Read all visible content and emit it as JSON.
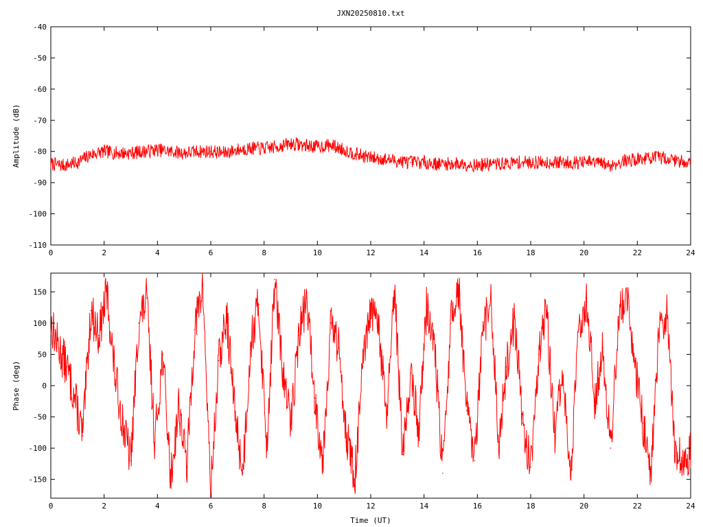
{
  "chart_data": [
    {
      "type": "line",
      "title": "JXN20250810.txt",
      "xlabel": "",
      "ylabel": "Amplitude (dB)",
      "xlim": [
        0,
        24
      ],
      "ylim": [
        -110,
        -40
      ],
      "xticks": [
        "0",
        "2",
        "4",
        "6",
        "8",
        "10",
        "12",
        "14",
        "16",
        "18",
        "20",
        "22",
        "24"
      ],
      "yticks": [
        "-40",
        "-50",
        "-60",
        "-70",
        "-80",
        "-90",
        "-100",
        "-110"
      ],
      "grid": false,
      "color": "#ff0000",
      "series": [
        {
          "x": [
            0,
            0.5,
            1.0,
            1.5,
            2.0,
            2.5,
            3.0,
            3.5,
            4.0,
            4.5,
            5.0,
            5.5,
            6.0,
            6.5,
            7.0,
            7.5,
            8.0,
            8.5,
            9.0,
            9.5,
            10.0,
            10.5,
            11.0,
            11.5,
            12.0,
            12.5,
            13.0,
            13.5,
            14.0,
            14.5,
            15.0,
            15.5,
            16.0,
            16.5,
            17.0,
            17.5,
            18.0,
            18.5,
            19.0,
            19.5,
            20.0,
            20.5,
            21.0,
            21.5,
            22.0,
            22.5,
            23.0,
            23.5,
            24.0
          ],
          "y": [
            -84,
            -84.5,
            -83.5,
            -81,
            -80,
            -80.5,
            -80.5,
            -80,
            -79.5,
            -80,
            -80.5,
            -80,
            -80,
            -80.5,
            -79.5,
            -79,
            -79,
            -78.5,
            -77.5,
            -78,
            -78.5,
            -78,
            -79.5,
            -81,
            -82,
            -82.5,
            -83,
            -83.5,
            -83.5,
            -84,
            -84,
            -84,
            -84.5,
            -84,
            -84,
            -83.5,
            -83.5,
            -83.5,
            -83.5,
            -83.5,
            -83.5,
            -83.5,
            -84.5,
            -83,
            -82.5,
            -82,
            -82,
            -83,
            -83.5
          ]
        }
      ]
    },
    {
      "type": "line",
      "title": "",
      "xlabel": "Time (UT)",
      "ylabel": "Phase (deg)",
      "xlim": [
        0,
        24
      ],
      "ylim": [
        -180,
        180
      ],
      "xticks": [
        "0",
        "2",
        "4",
        "6",
        "8",
        "10",
        "12",
        "14",
        "16",
        "18",
        "20",
        "22",
        "24"
      ],
      "yticks": [
        "150",
        "100",
        "50",
        "0",
        "-50",
        "-100",
        "-150"
      ],
      "grid": false,
      "color": "#ff0000",
      "series": [
        {
          "x": [
            0,
            0.3,
            0.6,
            0.9,
            1.2,
            1.5,
            1.8,
            2.1,
            2.4,
            2.7,
            3.0,
            3.3,
            3.6,
            3.9,
            4.2,
            4.5,
            4.8,
            5.1,
            5.4,
            5.7,
            6.0,
            6.3,
            6.6,
            6.9,
            7.2,
            7.5,
            7.8,
            8.1,
            8.4,
            8.7,
            9.0,
            9.3,
            9.6,
            9.9,
            10.2,
            10.5,
            10.8,
            11.1,
            11.4,
            11.7,
            12.0,
            12.3,
            12.6,
            12.9,
            13.2,
            13.5,
            13.8,
            14.1,
            14.4,
            14.7,
            15.0,
            15.3,
            15.6,
            15.9,
            16.2,
            16.5,
            16.8,
            17.1,
            17.4,
            17.7,
            18.0,
            18.3,
            18.6,
            18.9,
            19.2,
            19.5,
            19.8,
            20.1,
            20.4,
            20.7,
            21.0,
            21.3,
            21.6,
            21.9,
            22.2,
            22.5,
            22.8,
            23.1,
            23.4,
            23.7,
            24.0
          ],
          "y": [
            100,
            60,
            30,
            -20,
            -80,
            120,
            80,
            150,
            20,
            -60,
            -120,
            100,
            140,
            -90,
            50,
            -150,
            -30,
            -130,
            90,
            160,
            -170,
            40,
            110,
            -40,
            -140,
            70,
            130,
            -100,
            170,
            20,
            -60,
            80,
            140,
            -20,
            -120,
            100,
            60,
            -80,
            -150,
            30,
            120,
            90,
            -50,
            150,
            -110,
            20,
            -70,
            130,
            60,
            -140,
            100,
            160,
            -40,
            -120,
            80,
            140,
            -90,
            30,
            110,
            -60,
            -130,
            50,
            120,
            -80,
            20,
            -150,
            90,
            140,
            -20,
            60,
            -100,
            110,
            150,
            40,
            -60,
            -140,
            80,
            120,
            -90,
            -130,
            -100
          ]
        }
      ]
    }
  ]
}
